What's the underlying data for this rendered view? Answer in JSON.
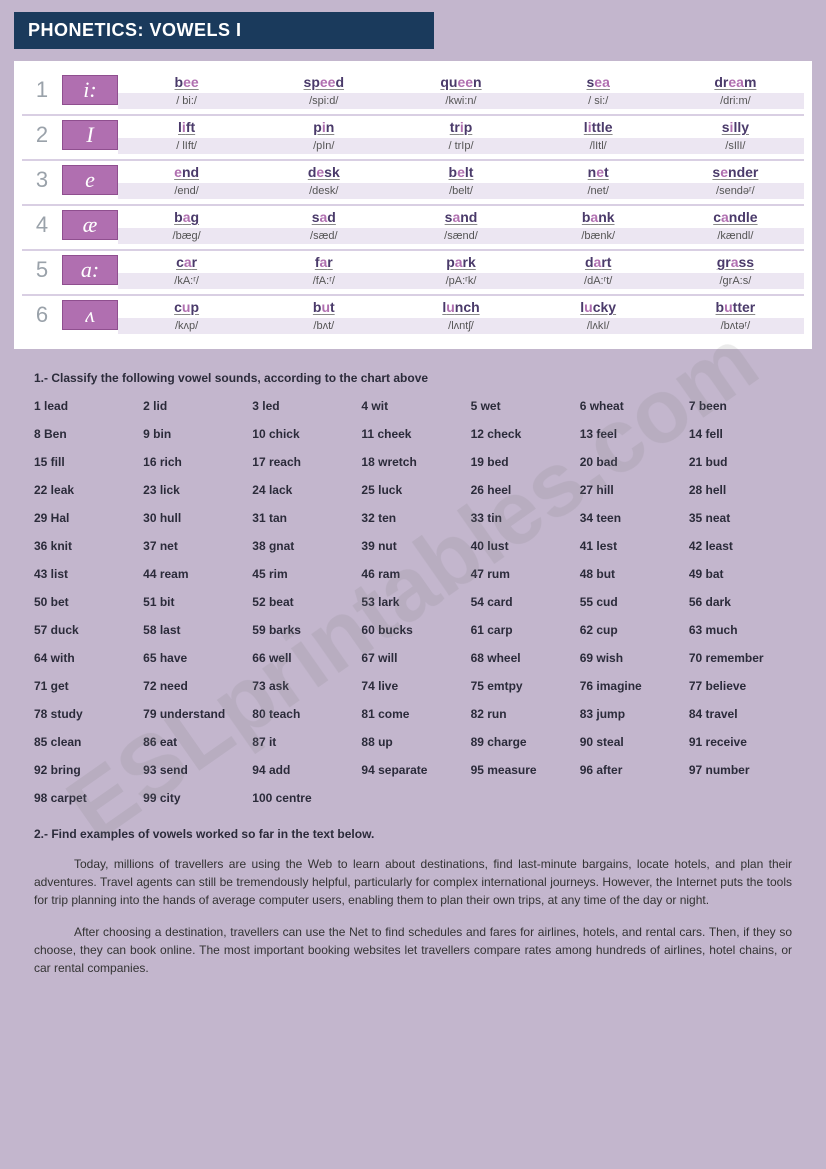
{
  "title": "PHONETICS: VOWELS I",
  "colors": {
    "page_bg": "#c3b6cd",
    "title_bg": "#1a3a5c",
    "title_fg": "#ffffff",
    "symbol_bg": "#b06fb0",
    "symbol_fg": "#ffffff",
    "highlight": "#b06fb0",
    "word_color": "#4a3a6a",
    "pron_bg": "#ece6f2"
  },
  "chart": [
    {
      "n": "1",
      "sym": "i:",
      "words": [
        {
          "pre": "b",
          "hl": "ee",
          "post": "",
          "pr": "/ bi:/"
        },
        {
          "pre": "sp",
          "hl": "ee",
          "post": "d",
          "pr": "/spi:d/"
        },
        {
          "pre": "qu",
          "hl": "ee",
          "post": "n",
          "pr": "/kwi:n/"
        },
        {
          "pre": "s",
          "hl": "ea",
          "post": "",
          "pr": "/ si:/"
        },
        {
          "pre": "dr",
          "hl": "ea",
          "post": "m",
          "pr": "/dri:m/"
        }
      ]
    },
    {
      "n": "2",
      "sym": "I",
      "words": [
        {
          "pre": "l",
          "hl": "i",
          "post": "ft",
          "pr": "/ lIft/"
        },
        {
          "pre": "p",
          "hl": "i",
          "post": "n",
          "pr": "/pIn/"
        },
        {
          "pre": "tr",
          "hl": "i",
          "post": "p",
          "pr": "/ trIp/"
        },
        {
          "pre": "l",
          "hl": "i",
          "post": "ttle",
          "pr": "/lItl/"
        },
        {
          "pre": "s",
          "hl": "i",
          "post": "lly",
          "pr": "/sIlI/"
        }
      ]
    },
    {
      "n": "3",
      "sym": "e",
      "words": [
        {
          "pre": "",
          "hl": "e",
          "post": "nd",
          "pr": "/end/"
        },
        {
          "pre": "d",
          "hl": "e",
          "post": "sk",
          "pr": "/desk/"
        },
        {
          "pre": "b",
          "hl": "e",
          "post": "lt",
          "pr": "/belt/"
        },
        {
          "pre": "n",
          "hl": "e",
          "post": "t",
          "pr": "/net/"
        },
        {
          "pre": "s",
          "hl": "e",
          "post": "nder",
          "pr": "/sendəʳ/"
        }
      ]
    },
    {
      "n": "4",
      "sym": "æ",
      "words": [
        {
          "pre": "b",
          "hl": "a",
          "post": "g",
          "pr": "/bæg/"
        },
        {
          "pre": "s",
          "hl": "a",
          "post": "d",
          "pr": "/sæd/"
        },
        {
          "pre": "s",
          "hl": "a",
          "post": "nd",
          "pr": "/sænd/"
        },
        {
          "pre": "b",
          "hl": "a",
          "post": "nk",
          "pr": "/bænk/"
        },
        {
          "pre": "c",
          "hl": "a",
          "post": "ndle",
          "pr": "/kændl/"
        }
      ]
    },
    {
      "n": "5",
      "sym": "a:",
      "words": [
        {
          "pre": "c",
          "hl": "a",
          "post": "r",
          "pr": "/kA:ʳ/"
        },
        {
          "pre": "f",
          "hl": "a",
          "post": "r",
          "pr": "/fA:ʳ/"
        },
        {
          "pre": "p",
          "hl": "a",
          "post": "rk",
          "pr": "/pA:ʳk/"
        },
        {
          "pre": "d",
          "hl": "a",
          "post": "rt",
          "pr": "/dA:ʳt/"
        },
        {
          "pre": "gr",
          "hl": "a",
          "post": "ss",
          "pr": "/grA:s/"
        }
      ]
    },
    {
      "n": "6",
      "sym": "ʌ",
      "words": [
        {
          "pre": "c",
          "hl": "u",
          "post": "p",
          "pr": "/kʌp/"
        },
        {
          "pre": "b",
          "hl": "u",
          "post": "t",
          "pr": "/bʌt/"
        },
        {
          "pre": "l",
          "hl": "u",
          "post": "nch",
          "pr": "/lʌntʃ/"
        },
        {
          "pre": "l",
          "hl": "u",
          "post": "cky",
          "pr": "/lʌkI/"
        },
        {
          "pre": "b",
          "hl": "u",
          "post": "tter",
          "pr": "/bʌtəʳ/"
        }
      ]
    }
  ],
  "ex1_heading": "1.- Classify the following vowel sounds, according to the chart above",
  "ex1": [
    "1 lead",
    "2 lid",
    "3 led",
    "4 wit",
    "5  wet",
    "6 wheat",
    "7 been",
    "8  Ben",
    "9 bin",
    "10 chick",
    "11 cheek",
    "12 check",
    "13 feel",
    "14 fell",
    "15 fill",
    "16 rich",
    "17 reach",
    "18 wretch",
    "19 bed",
    "20 bad",
    "21 bud",
    "22 leak",
    "23 lick",
    "24 lack",
    "25 luck",
    "26 heel",
    "27 hill",
    "28 hell",
    "29 Hal",
    "30 hull",
    "31 tan",
    "32 ten",
    "33 tin",
    "34 teen",
    "35 neat",
    "36 knit",
    "37 net",
    "38 gnat",
    "39 nut",
    "40 lust",
    "41 lest",
    "42 least",
    "43 list",
    "44 ream",
    "45 rim",
    "46 ram",
    "47 rum",
    "48 but",
    "49 bat",
    "50 bet",
    "51 bit",
    "52 beat",
    "53 lark",
    "54 card",
    "55 cud",
    "56 dark",
    "57 duck",
    "58 last",
    "59 barks",
    "60 bucks",
    "61 carp",
    "62 cup",
    "63 much",
    "64 with",
    "65 have",
    "66 well",
    "67 will",
    "68 wheel",
    "69 wish",
    "70 remember",
    "71 get",
    "72 need",
    "73 ask",
    "74 live",
    "75 emtpy",
    "76 imagine",
    "77 believe",
    "78 study",
    "79 understand",
    "80 teach",
    "81 come",
    "82 run",
    "83 jump",
    "84 travel",
    "85 clean",
    "86 eat",
    "87 it",
    "88 up",
    "89 charge",
    " 90 steal",
    "91 receive",
    "92 bring",
    "93 send",
    "94 add",
    "94 separate",
    "95 measure",
    "96 after",
    "97 number",
    "98 carpet",
    "99 city",
    "100 centre",
    "",
    "",
    "",
    ""
  ],
  "ex2_heading": "2.- Find examples of vowels worked so far in the text below.",
  "para1": "Today, millions of travellers are using the Web to learn about destinations, find last-minute bargains, locate hotels, and plan their adventures. Travel agents can still be tremendously helpful, particularly for complex international journeys. However, the Internet puts the tools for trip planning into the hands of average computer users, enabling them to plan their own trips, at any time of the day or night.",
  "para2": "After choosing a destination, travellers can use the Net to find schedules and fares for airlines, hotels, and rental cars. Then, if they so choose, they can book online. The most important booking websites let travellers compare rates among hundreds of airlines, hotel chains, or car rental companies.",
  "watermark": "ESLprintables.com"
}
